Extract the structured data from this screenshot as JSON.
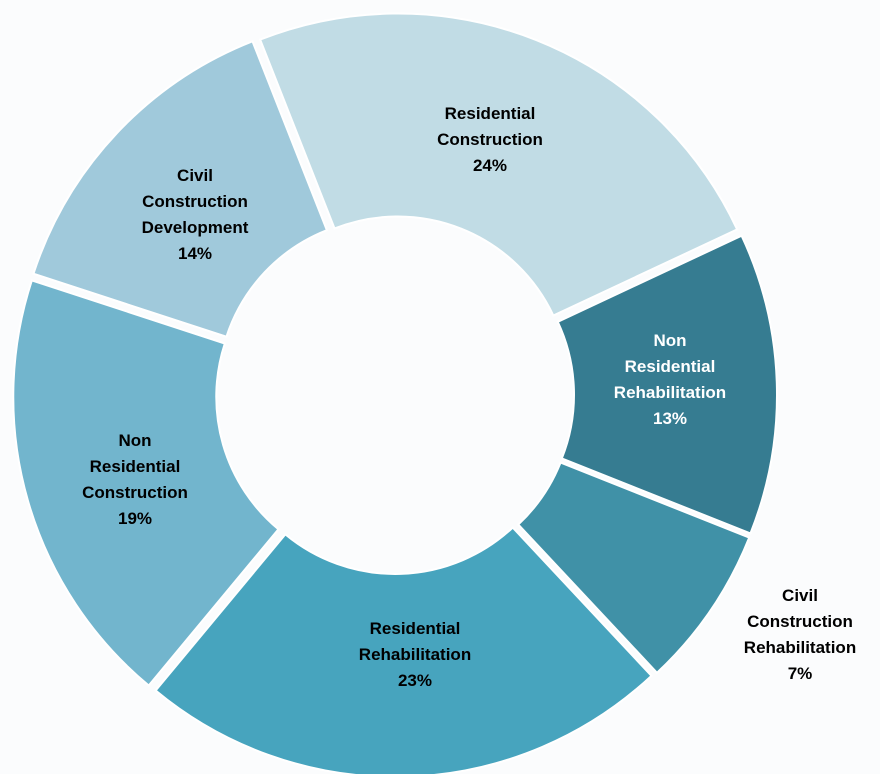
{
  "chart_data": {
    "type": "donut",
    "categories": [
      "Residential Construction",
      "Non Residential Rehabilitation",
      "Civil Construction Rehabilitation",
      "Residential Rehabilitation",
      "Non Residential Construction",
      "Civil Construction Development"
    ],
    "values": [
      24,
      13,
      7,
      23,
      19,
      14
    ],
    "value_labels": [
      "24%",
      "13%",
      "7%",
      "23%",
      "19%",
      "14%"
    ],
    "colors": [
      "#c1dce5",
      "#367c91",
      "#4091a7",
      "#47a4be",
      "#72b5cd",
      "#a0c9db"
    ]
  }
}
